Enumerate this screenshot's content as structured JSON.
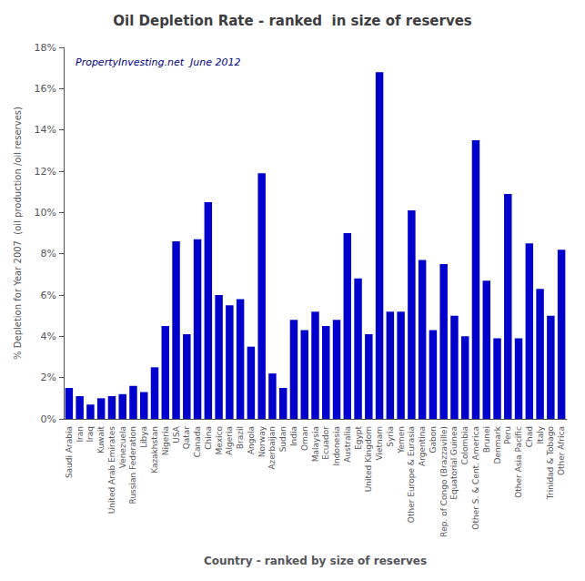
{
  "chart_data": {
    "type": "bar",
    "title": "Oil Depletion Rate - ranked  in size of reserves",
    "subtitle": "PropertyInvesting.net  June 2012",
    "xlabel": "Country - ranked by size of reserves",
    "ylabel": "% Depletion for Year 2007  (oil production /oil reserves)",
    "color": "#0000CC",
    "grid": false,
    "ylim": [
      0,
      0.18
    ],
    "yticks": [
      {
        "value": 0,
        "label": "0%"
      },
      {
        "value": 0.02,
        "label": "2%"
      },
      {
        "value": 0.04,
        "label": "4%"
      },
      {
        "value": 0.06,
        "label": "6%"
      },
      {
        "value": 0.08,
        "label": "8%"
      },
      {
        "value": 0.1,
        "label": "10%"
      },
      {
        "value": 0.12,
        "label": "12%"
      },
      {
        "value": 0.14,
        "label": "14%"
      },
      {
        "value": 0.16,
        "label": "16%"
      },
      {
        "value": 0.18,
        "label": "18%"
      }
    ],
    "categories": [
      "Saudi Arabia",
      "Iran",
      "Iraq",
      "Kuwait",
      "United Arab Emirates",
      "Venezuela",
      "Russian Federation",
      "Libya",
      "Kazakhstan",
      "Nigeria",
      "USA",
      "Qatar",
      "Canada",
      "China",
      "Mexico",
      "Algeria",
      "Brazil",
      "Angola",
      "Norway",
      "Azerbaijan",
      "Sudan",
      "India",
      "Oman",
      "Malaysia",
      "Ecuador",
      "Indonesia",
      "Australia",
      "Egypt",
      "United Kingdom",
      "Vietnam",
      "Syria",
      "Yemen",
      "Other Europe & Eurasia",
      "Argentina",
      "Gabon",
      "Rep. of Congo (Brazzaville)",
      "Equatorial Guinea",
      "Colombia",
      "Other S. & Cent. America",
      "Brunei",
      "Denmark",
      "Peru",
      "Other Asia Pacific",
      "Chad",
      "Italy",
      "Trinidad & Tobago",
      "Other Africa"
    ],
    "values": [
      0.015,
      0.011,
      0.007,
      0.01,
      0.011,
      0.012,
      0.016,
      0.013,
      0.025,
      0.045,
      0.086,
      0.041,
      0.087,
      0.105,
      0.06,
      0.055,
      0.058,
      0.035,
      0.119,
      0.022,
      0.015,
      0.048,
      0.043,
      0.052,
      0.045,
      0.048,
      0.09,
      0.068,
      0.041,
      0.168,
      0.052,
      0.052,
      0.101,
      0.077,
      0.043,
      0.075,
      0.05,
      0.04,
      0.135,
      0.067,
      0.039,
      0.109,
      0.039,
      0.085,
      0.063,
      0.05,
      0.082
    ]
  }
}
